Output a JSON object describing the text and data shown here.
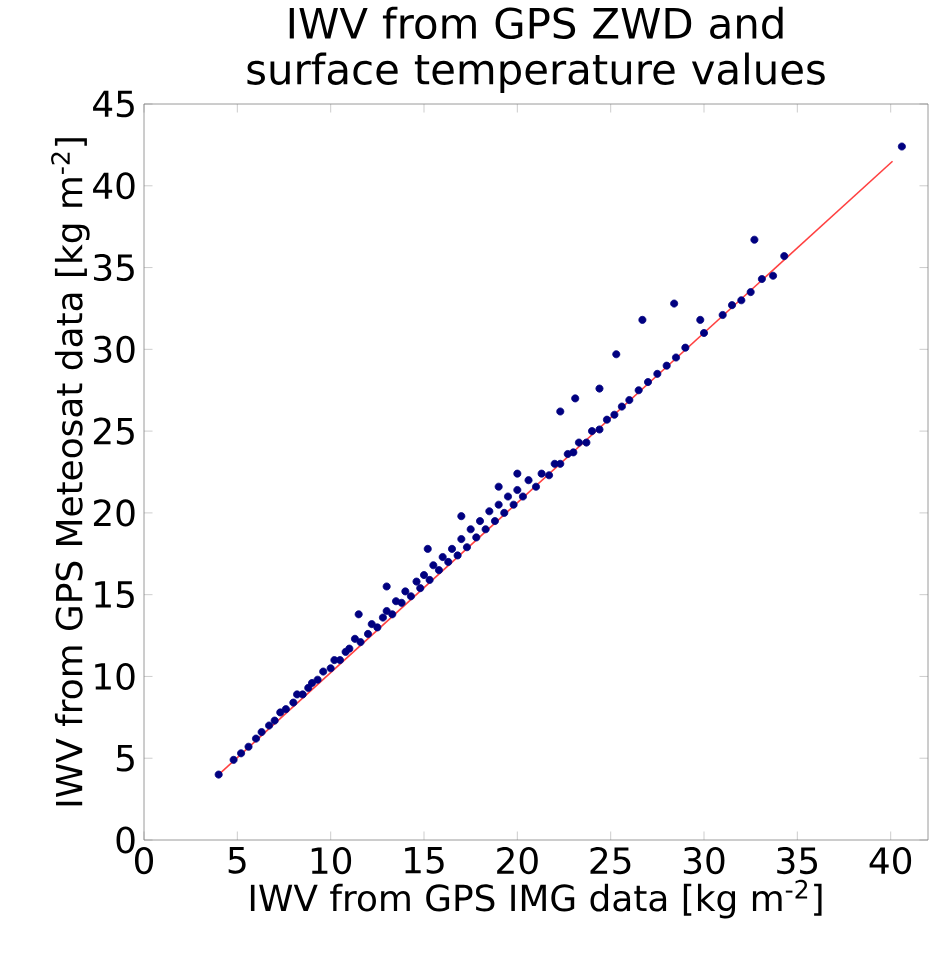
{
  "chart_data": {
    "type": "scatter",
    "title": "IWV from GPS ZWD and surface temperature values",
    "xlabel": "IWV from GPS IMG data [kg m$^{-2}$]",
    "ylabel": "IWV from GPS Meteosat data [kg m$^{-2}$]",
    "xlim": [
      0,
      42
    ],
    "ylim": [
      0,
      45
    ],
    "xticks": [
      0,
      5,
      10,
      15,
      20,
      25,
      30,
      35,
      40
    ],
    "yticks": [
      0,
      5,
      10,
      15,
      20,
      25,
      30,
      35,
      40,
      45
    ],
    "grid": false,
    "series": [
      {
        "marker": "circle",
        "color": "#000080",
        "x": [
          4,
          4.8,
          5.2,
          5.6,
          6,
          6.3,
          6.7,
          7,
          7.3,
          7.6,
          8,
          8.2,
          8.5,
          8.8,
          9,
          9.3,
          9.6,
          10,
          10.2,
          10.5,
          10.8,
          11,
          11.3,
          11.6,
          12,
          12.2,
          12.5,
          12.8,
          13,
          13.3,
          13.5,
          13.8,
          14,
          14.3,
          14.6,
          14.8,
          15,
          15.3,
          15.5,
          15.8,
          16,
          16.3,
          16.5,
          16.8,
          17,
          17.3,
          17.5,
          17.8,
          18,
          18.3,
          18.5,
          18.8,
          19,
          19.3,
          19.5,
          19.8,
          20,
          20.3,
          20.6,
          21,
          21.3,
          21.7,
          22,
          22.3,
          22.7,
          23,
          23.3,
          23.7,
          24,
          24.4,
          24.8,
          25.2,
          25.6,
          26,
          26.5,
          27,
          27.5,
          28,
          28.5,
          29,
          30,
          31,
          32,
          32.5,
          11.5,
          13,
          15.2,
          17,
          19,
          20,
          22.3,
          23.1,
          24.4,
          25.3,
          26.7,
          28.4,
          29.8,
          31.5,
          33.1,
          33.7,
          34.3,
          32.7,
          40.6
        ],
        "values": [
          4,
          4.9,
          5.3,
          5.7,
          6.2,
          6.6,
          7.0,
          7.3,
          7.8,
          8.0,
          8.4,
          8.9,
          8.9,
          9.3,
          9.6,
          9.8,
          10.3,
          10.5,
          11.0,
          11.0,
          11.5,
          11.7,
          12.3,
          12.1,
          12.6,
          13.2,
          13.0,
          13.6,
          14.0,
          13.8,
          14.6,
          14.5,
          15.2,
          14.9,
          15.8,
          15.4,
          16.2,
          15.9,
          16.8,
          16.5,
          17.3,
          17.0,
          17.8,
          17.4,
          18.4,
          17.9,
          19.0,
          18.5,
          19.5,
          19.0,
          20.1,
          19.5,
          20.5,
          20.0,
          21.0,
          20.5,
          21.4,
          21.0,
          22.0,
          21.6,
          22.4,
          22.3,
          23.0,
          23.0,
          23.6,
          23.7,
          24.3,
          24.3,
          25.0,
          25.1,
          25.7,
          26.0,
          26.5,
          26.9,
          27.5,
          28.0,
          28.5,
          29.0,
          29.5,
          30.1,
          31.0,
          32.1,
          33.0,
          33.5,
          13.8,
          15.5,
          17.8,
          19.8,
          21.6,
          22.4,
          26.2,
          27.0,
          27.6,
          29.7,
          31.8,
          32.8,
          31.8,
          32.7,
          34.3,
          34.5,
          35.7,
          36.7,
          42.4
        ]
      },
      {
        "type": "line",
        "color": "#ff4040",
        "marker": "none",
        "x": [
          4,
          40.1
        ],
        "values": [
          4,
          41.5
        ]
      }
    ]
  }
}
